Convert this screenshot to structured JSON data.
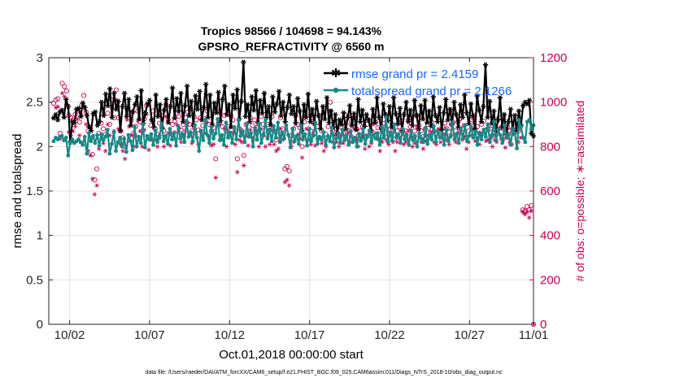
{
  "chart_data": {
    "type": "line",
    "title_line1": "Tropics 98566 / 104698 = 94.143%",
    "title_line2": "GPSRO_REFRACTIVITY @ 6560 m",
    "xlabel": "Oct.01,2018 00:00:00 start",
    "ylabel_left": "rmse and totalspread",
    "ylabel_right": "# of obs: o=possible; ∗=assimilated",
    "footer": "data file: /Users/raeder/DAI/ATM_forcXX/CAM6_setup/f.e21.FHIST_BGC.f09_025.CAM6assim.011/Diags_NTrS_2018-10/obs_diag_output.nc",
    "xlim": [
      0.7,
      31.0
    ],
    "ylim_left": [
      0,
      3
    ],
    "ylim_right": [
      0,
      1200
    ],
    "x_ticks": [
      {
        "value": 2,
        "label": "10/02"
      },
      {
        "value": 7,
        "label": "10/07"
      },
      {
        "value": 12,
        "label": "10/12"
      },
      {
        "value": 17,
        "label": "10/17"
      },
      {
        "value": 22,
        "label": "10/22"
      },
      {
        "value": 27,
        "label": "10/27"
      },
      {
        "value": 31,
        "label": "11/01"
      }
    ],
    "y_ticks_left": [
      {
        "value": 0,
        "label": "0"
      },
      {
        "value": 0.5,
        "label": "0.5"
      },
      {
        "value": 1,
        "label": "1"
      },
      {
        "value": 1.5,
        "label": "1.5"
      },
      {
        "value": 2,
        "label": "2"
      },
      {
        "value": 2.5,
        "label": "2.5"
      },
      {
        "value": 3,
        "label": "3"
      }
    ],
    "y_ticks_right": [
      {
        "value": 0,
        "label": "0"
      },
      {
        "value": 200,
        "label": "200"
      },
      {
        "value": 400,
        "label": "400"
      },
      {
        "value": 600,
        "label": "600"
      },
      {
        "value": 800,
        "label": "800"
      },
      {
        "value": 1000,
        "label": "1000"
      },
      {
        "value": 1200,
        "label": "1200"
      }
    ],
    "grid": true,
    "legend_position": "top-right",
    "series": [
      {
        "name": "rmse grand pr = 2.4159",
        "axis": "left",
        "color": "#000000",
        "marker": "star",
        "values": [
          2.32,
          2.36,
          2.3,
          2.39,
          2.41,
          2.33,
          2.53,
          2.45,
          2.05,
          2.28,
          2.27,
          2.42,
          2.43,
          2.34,
          2.49,
          2.44,
          2.35,
          2.22,
          2.18,
          2.37,
          2.39,
          2.24,
          2.28,
          2.5,
          2.35,
          2.59,
          2.46,
          2.65,
          2.33,
          2.6,
          2.42,
          2.51,
          2.18,
          2.45,
          2.6,
          2.34,
          2.53,
          2.24,
          2.39,
          2.47,
          2.56,
          2.31,
          2.63,
          2.26,
          2.38,
          2.48,
          2.52,
          2.3,
          2.22,
          2.58,
          2.34,
          2.47,
          2.21,
          2.41,
          2.53,
          2.27,
          2.45,
          2.66,
          2.32,
          2.54,
          2.4,
          2.6,
          2.28,
          2.46,
          2.68,
          2.35,
          2.51,
          2.24,
          2.57,
          2.42,
          2.62,
          2.3,
          2.44,
          2.7,
          2.33,
          2.58,
          2.25,
          2.49,
          2.38,
          2.61,
          2.29,
          2.53,
          2.68,
          2.36,
          2.47,
          2.22,
          2.58,
          2.43,
          2.64,
          2.31,
          2.51,
          2.95,
          2.34,
          2.47,
          2.28,
          2.56,
          2.41,
          2.63,
          2.27,
          2.52,
          2.38,
          2.6,
          2.33,
          2.45,
          2.25,
          2.56,
          2.39,
          2.48,
          2.62,
          2.35,
          2.5,
          2.28,
          2.44,
          2.58,
          2.37,
          2.45,
          2.27,
          2.54,
          2.4,
          2.18,
          2.47,
          2.33,
          2.59,
          2.28,
          2.42,
          2.26,
          2.51,
          2.35,
          2.2,
          2.45,
          2.31,
          2.55,
          2.27,
          2.4,
          2.22,
          2.36,
          2.15,
          2.3,
          2.25,
          2.38,
          2.2,
          2.33,
          2.46,
          2.24,
          2.37,
          2.19,
          2.53,
          2.28,
          2.41,
          2.23,
          2.36,
          2.3,
          2.18,
          2.42,
          2.27,
          2.55,
          2.33,
          2.21,
          2.48,
          2.36,
          2.29,
          2.45,
          2.22,
          2.55,
          2.37,
          2.26,
          2.43,
          2.18,
          2.36,
          2.5,
          2.28,
          2.41,
          2.24,
          2.52,
          2.35,
          2.2,
          2.46,
          2.31,
          2.52,
          2.27,
          2.4,
          2.23,
          2.56,
          2.35,
          2.28,
          2.44,
          2.19,
          2.38,
          2.53,
          2.3,
          2.42,
          2.25,
          2.5,
          2.36,
          2.22,
          2.47,
          2.33,
          2.58,
          2.38,
          2.26,
          2.48,
          2.35,
          2.2,
          2.57,
          2.41,
          2.28,
          2.45,
          2.92,
          2.33,
          2.51,
          2.26,
          2.4,
          2.17,
          2.3,
          2.55,
          2.22,
          2.36,
          2.14,
          2.28,
          2.42,
          2.2,
          2.35,
          2.18,
          2.4,
          2.24,
          2.46,
          2.5,
          2.48,
          2.52,
          2.15,
          2.12
        ]
      },
      {
        "name": "totalspread grand pr = 2.1266",
        "axis": "left",
        "color": "#138a86",
        "marker": "dot",
        "values": [
          2.06,
          2.1,
          2.08,
          2.11,
          2.12,
          2.07,
          2.1,
          1.9,
          2.05,
          2.08,
          2.04,
          2.06,
          2.08,
          2.05,
          2.02,
          2.11,
          1.92,
          2.15,
          2.06,
          2.12,
          2.04,
          2.13,
          2.01,
          2.14,
          2.07,
          2.11,
          2.19,
          1.92,
          2.03,
          2.16,
          1.95,
          2.05,
          2.1,
          2.0,
          2.09,
          1.94,
          2.13,
          2.06,
          1.96,
          2.22,
          2.0,
          2.11,
          2.04,
          2.25,
          1.99,
          2.12,
          2.08,
          2.14,
          2.02,
          2.18,
          2.05,
          2.1,
          2.26,
          2.06,
          2.12,
          2.03,
          2.2,
          2.08,
          2.15,
          2.01,
          2.23,
          2.09,
          2.14,
          2.05,
          2.29,
          2.11,
          2.16,
          2.06,
          2.24,
          2.1,
          1.95,
          2.18,
          2.07,
          2.3,
          2.13,
          2.04,
          2.22,
          2.09,
          2.15,
          2.31,
          2.07,
          2.13,
          2.02,
          2.27,
          2.1,
          2.16,
          2.04,
          2.22,
          2.08,
          2.3,
          2.12,
          2.17,
          2.05,
          2.25,
          2.11,
          2.15,
          2.0,
          2.21,
          2.08,
          2.26,
          2.04,
          2.14,
          2.3,
          2.09,
          2.19,
          2.06,
          2.23,
          2.1,
          2.27,
          2.05,
          2.16,
          2.09,
          2.24,
          2.13,
          1.99,
          2.2,
          2.06,
          2.12,
          2.03,
          2.24,
          2.08,
          2.14,
          2.01,
          2.19,
          2.06,
          2.12,
          2.27,
          2.03,
          2.11,
          2.08,
          2.16,
          2.02,
          2.12,
          2.06,
          2.21,
          1.99,
          2.09,
          2.15,
          2.04,
          2.19,
          2.07,
          2.12,
          2.02,
          2.17,
          2.05,
          2.1,
          2.0,
          2.14,
          2.07,
          2.2,
          2.03,
          2.11,
          2.18,
          2.06,
          2.13,
          2.09,
          2.15,
          2.02,
          2.22,
          2.1,
          2.33,
          2.05,
          2.16,
          2.07,
          2.25,
          2.1,
          2.14,
          2.04,
          2.2,
          2.08,
          2.13,
          2.02,
          2.18,
          2.07,
          2.12,
          2.0,
          2.15,
          2.09,
          2.05,
          2.21,
          2.03,
          2.13,
          2.08,
          2.23,
          2.05,
          2.17,
          2.1,
          2.14,
          2.02,
          2.19,
          2.06,
          2.11,
          2.27,
          2.08,
          2.14,
          2.04,
          2.2,
          2.09,
          2.24,
          2.06,
          2.12,
          2.22,
          2.1,
          2.17,
          2.02,
          2.15,
          2.08,
          2.19,
          2.11,
          2.25,
          2.05,
          2.13,
          2.28,
          2.07,
          2.19,
          2.13,
          2.04,
          2.24,
          2.1,
          2.14,
          2.02,
          2.2,
          2.15,
          1.98,
          2.3,
          2.22,
          2.1,
          2.05,
          2.28,
          2.3,
          2.2,
          2.24
        ]
      },
      {
        "name": "possible",
        "axis": "right",
        "color": "#cc0055",
        "marker": "circle",
        "values": [
          995,
          1010,
          1015,
          860,
          1085,
          1070,
          1050,
          940,
          930,
          920,
          945,
          960,
          910,
          985,
          1030,
          955,
          870,
          835,
          765,
          650,
          700,
          860,
          905,
          880,
          855,
          950,
          900,
          1010,
          930,
          1055,
          930,
          870,
          840,
          800,
          970,
          955,
          920,
          860,
          890,
          960,
          910,
          870,
          925,
          985,
          840,
          895,
          960,
          880,
          855,
          905,
          940,
          870,
          990,
          920,
          860,
          900,
          915,
          950,
          935,
          875,
          900,
          930,
          955,
          900,
          870,
          935,
          920,
          875,
          930,
          895,
          925,
          960,
          900,
          870,
          885,
          745,
          960,
          955,
          890,
          940,
          870,
          890,
          940,
          920,
          870,
          745,
          880,
          870,
          760,
          900,
          850,
          930,
          895,
          920,
          885,
          870,
          935,
          900,
          855,
          900,
          875,
          935,
          870,
          830,
          850,
          930,
          880,
          700,
          710,
          690,
          850,
          880,
          940,
          900,
          885,
          800,
          910,
          940,
          880,
          870,
          910,
          860,
          890,
          940,
          870,
          830,
          855,
          890,
          1000,
          870,
          910,
          880,
          850,
          890,
          860,
          940,
          910,
          870,
          895,
          930,
          880,
          850,
          870,
          890,
          845,
          900,
          850,
          870,
          940,
          910,
          885,
          830,
          870,
          905,
          880,
          860,
          910,
          870,
          835,
          870,
          890,
          915,
          860,
          870,
          920,
          890,
          850,
          870,
          940,
          895,
          870,
          845,
          880,
          900,
          920,
          910,
          870,
          860,
          930,
          870,
          890,
          905,
          880,
          865,
          900,
          955,
          870,
          910,
          925,
          880,
          895,
          840,
          870,
          905,
          930,
          875,
          890,
          860,
          900,
          915,
          875,
          880,
          880,
          850,
          880,
          870,
          930,
          885,
          880,
          845,
          890,
          870,
          860,
          905,
          935,
          870,
          890,
          515,
          510,
          530,
          515,
          535,
          0
        ]
      },
      {
        "name": "assimilated",
        "axis": "right",
        "color": "#cc0055",
        "marker": "star",
        "values": [
          930,
          975,
          980,
          835,
          1040,
          1025,
          990,
          865,
          850,
          870,
          890,
          925,
          850,
          940,
          980,
          900,
          780,
          760,
          655,
          585,
          625,
          790,
          835,
          815,
          780,
          900,
          850,
          975,
          870,
          1010,
          880,
          810,
          780,
          745,
          920,
          890,
          850,
          800,
          850,
          915,
          870,
          800,
          875,
          945,
          785,
          830,
          915,
          830,
          800,
          850,
          890,
          800,
          935,
          860,
          805,
          835,
          865,
          900,
          880,
          820,
          850,
          870,
          905,
          855,
          815,
          880,
          855,
          810,
          870,
          840,
          860,
          910,
          845,
          805,
          810,
          660,
          910,
          900,
          830,
          880,
          800,
          850,
          890,
          860,
          810,
          685,
          830,
          820,
          715,
          850,
          805,
          875,
          840,
          870,
          830,
          800,
          880,
          850,
          800,
          845,
          810,
          890,
          810,
          780,
          790,
          880,
          830,
          640,
          650,
          625,
          800,
          820,
          900,
          855,
          835,
          750,
          855,
          880,
          830,
          810,
          855,
          805,
          835,
          900,
          815,
          780,
          800,
          845,
          960,
          820,
          850,
          820,
          800,
          850,
          815,
          895,
          860,
          820,
          845,
          880,
          830,
          800,
          825,
          840,
          790,
          850,
          800,
          815,
          900,
          860,
          835,
          780,
          820,
          850,
          830,
          810,
          860,
          820,
          780,
          820,
          840,
          870,
          810,
          820,
          870,
          840,
          800,
          815,
          890,
          845,
          820,
          790,
          825,
          850,
          870,
          860,
          820,
          810,
          880,
          820,
          840,
          855,
          830,
          810,
          850,
          910,
          820,
          860,
          875,
          830,
          845,
          790,
          820,
          850,
          880,
          825,
          840,
          810,
          850,
          865,
          825,
          830,
          835,
          800,
          830,
          820,
          880,
          835,
          830,
          795,
          840,
          820,
          810,
          855,
          885,
          820,
          840,
          505,
          495,
          505,
          480,
          510,
          0
        ]
      }
    ]
  }
}
